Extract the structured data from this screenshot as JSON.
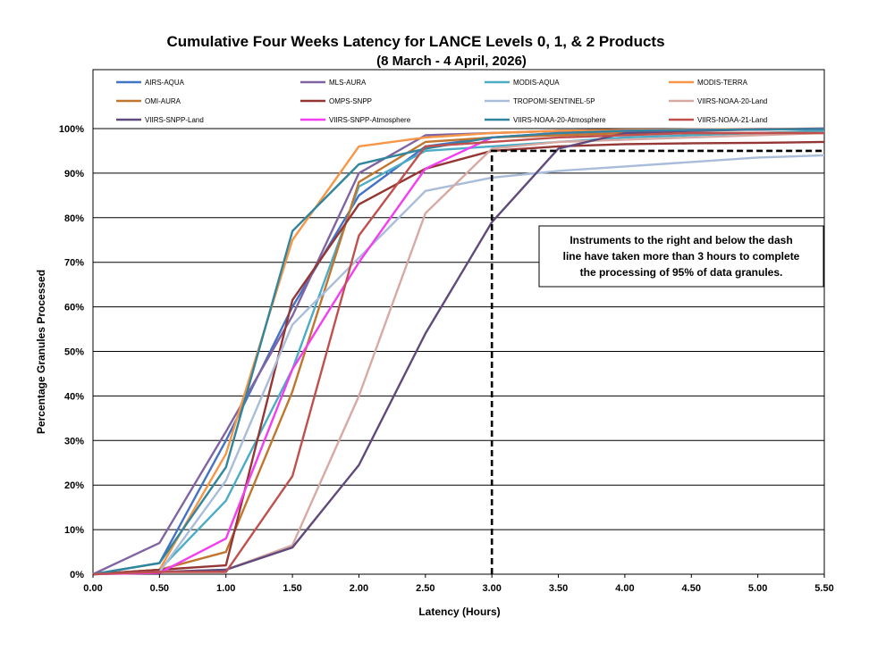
{
  "chart_data": {
    "type": "line",
    "title": "Cumulative Four Weeks Latency  for LANCE Levels 0, 1, & 2 Products",
    "subtitle": "(8  March   - 4  April,  2026)",
    "xlabel": "Latency (Hours)",
    "ylabel": "Percentage Granules Processed",
    "xlim": [
      0,
      5.5
    ],
    "ylim": [
      0,
      100
    ],
    "x_ticks": [
      "0.00",
      "0.50",
      "1.00",
      "1.50",
      "2.00",
      "2.50",
      "3.00",
      "3.50",
      "4.00",
      "4.50",
      "5.00",
      "5.50"
    ],
    "y_ticks": [
      "0%",
      "10%",
      "20%",
      "30%",
      "40%",
      "50%",
      "60%",
      "70%",
      "80%",
      "90%",
      "100%"
    ],
    "grid": "horizontal",
    "legend_position": "top",
    "x": [
      0,
      0.5,
      1.0,
      1.5,
      2.0,
      2.5,
      3.0,
      3.5,
      4.0,
      4.5,
      5.0,
      5.5
    ],
    "series": [
      {
        "name": "AIRS-AQUA",
        "color": "#4472C4",
        "values": [
          0,
          2.5,
          30,
          60,
          85,
          96,
          98,
          99,
          99.5,
          99.7,
          99.8,
          99.9
        ]
      },
      {
        "name": "MLS-AURA",
        "color": "#8064A2",
        "values": [
          0,
          7,
          32,
          58,
          90,
          98.5,
          99,
          99.5,
          99.7,
          99.8,
          99.9,
          100
        ]
      },
      {
        "name": "MODIS-AQUA",
        "color": "#4BACC6",
        "values": [
          0,
          1,
          16.5,
          46,
          87,
          95,
          96,
          97,
          98,
          98.5,
          99,
          99.5
        ]
      },
      {
        "name": "MODIS-TERRA",
        "color": "#F79646",
        "values": [
          0,
          1,
          27,
          75,
          96,
          98,
          99,
          99.5,
          99.7,
          99.8,
          99.9,
          100
        ]
      },
      {
        "name": "OMI-AURA",
        "color": "#C0762E",
        "values": [
          0,
          1,
          5,
          41,
          88,
          97,
          98,
          98.5,
          99,
          99,
          99,
          99
        ]
      },
      {
        "name": "OMPS-SNPP",
        "color": "#943634",
        "values": [
          0,
          1,
          2,
          61.5,
          83,
          91,
          95,
          96,
          96.5,
          96.7,
          96.8,
          97
        ]
      },
      {
        "name": "TROPOMI-SENTINEL-5P",
        "color": "#A9BCD9",
        "values": [
          0,
          0.5,
          21,
          56,
          71,
          86,
          89,
          90.5,
          91.5,
          92.5,
          93.5,
          94
        ]
      },
      {
        "name": "VIIRS-NOAA-20-Land",
        "color": "#D8A9A3",
        "values": [
          0,
          0.5,
          1,
          6.5,
          40,
          81,
          95.5,
          97,
          97.5,
          98,
          98.5,
          99
        ]
      },
      {
        "name": "VIIRS-SNPP-Land",
        "color": "#604A7B",
        "values": [
          0,
          0.5,
          1,
          6,
          24.5,
          54,
          79,
          95.5,
          99,
          99.5,
          99.8,
          100
        ]
      },
      {
        "name": "VIIRS-SNPP-Atmosphere",
        "color": "#F43DF0",
        "values": [
          0,
          0.3,
          8,
          46,
          70,
          91,
          98,
          99,
          99.5,
          99.7,
          99.8,
          99.9
        ]
      },
      {
        "name": "VIIRS-NOAA-20-Atmosphere",
        "color": "#31859C",
        "values": [
          0,
          2.5,
          24,
          77,
          92,
          95.5,
          98,
          99,
          99.5,
          99.7,
          99.8,
          99.9
        ]
      },
      {
        "name": "VIIRS-NOAA-21-Land",
        "color": "#C0504D",
        "values": [
          0,
          0.5,
          0.5,
          22,
          76,
          96,
          97,
          98,
          98.5,
          99,
          99,
          99
        ]
      }
    ],
    "threshold": {
      "x": 3.0,
      "y": 95
    },
    "annotation": [
      "Instruments to the right and below the dash",
      "line have taken more than 3 hours to complete",
      "the processing of 95% of data granules."
    ]
  }
}
